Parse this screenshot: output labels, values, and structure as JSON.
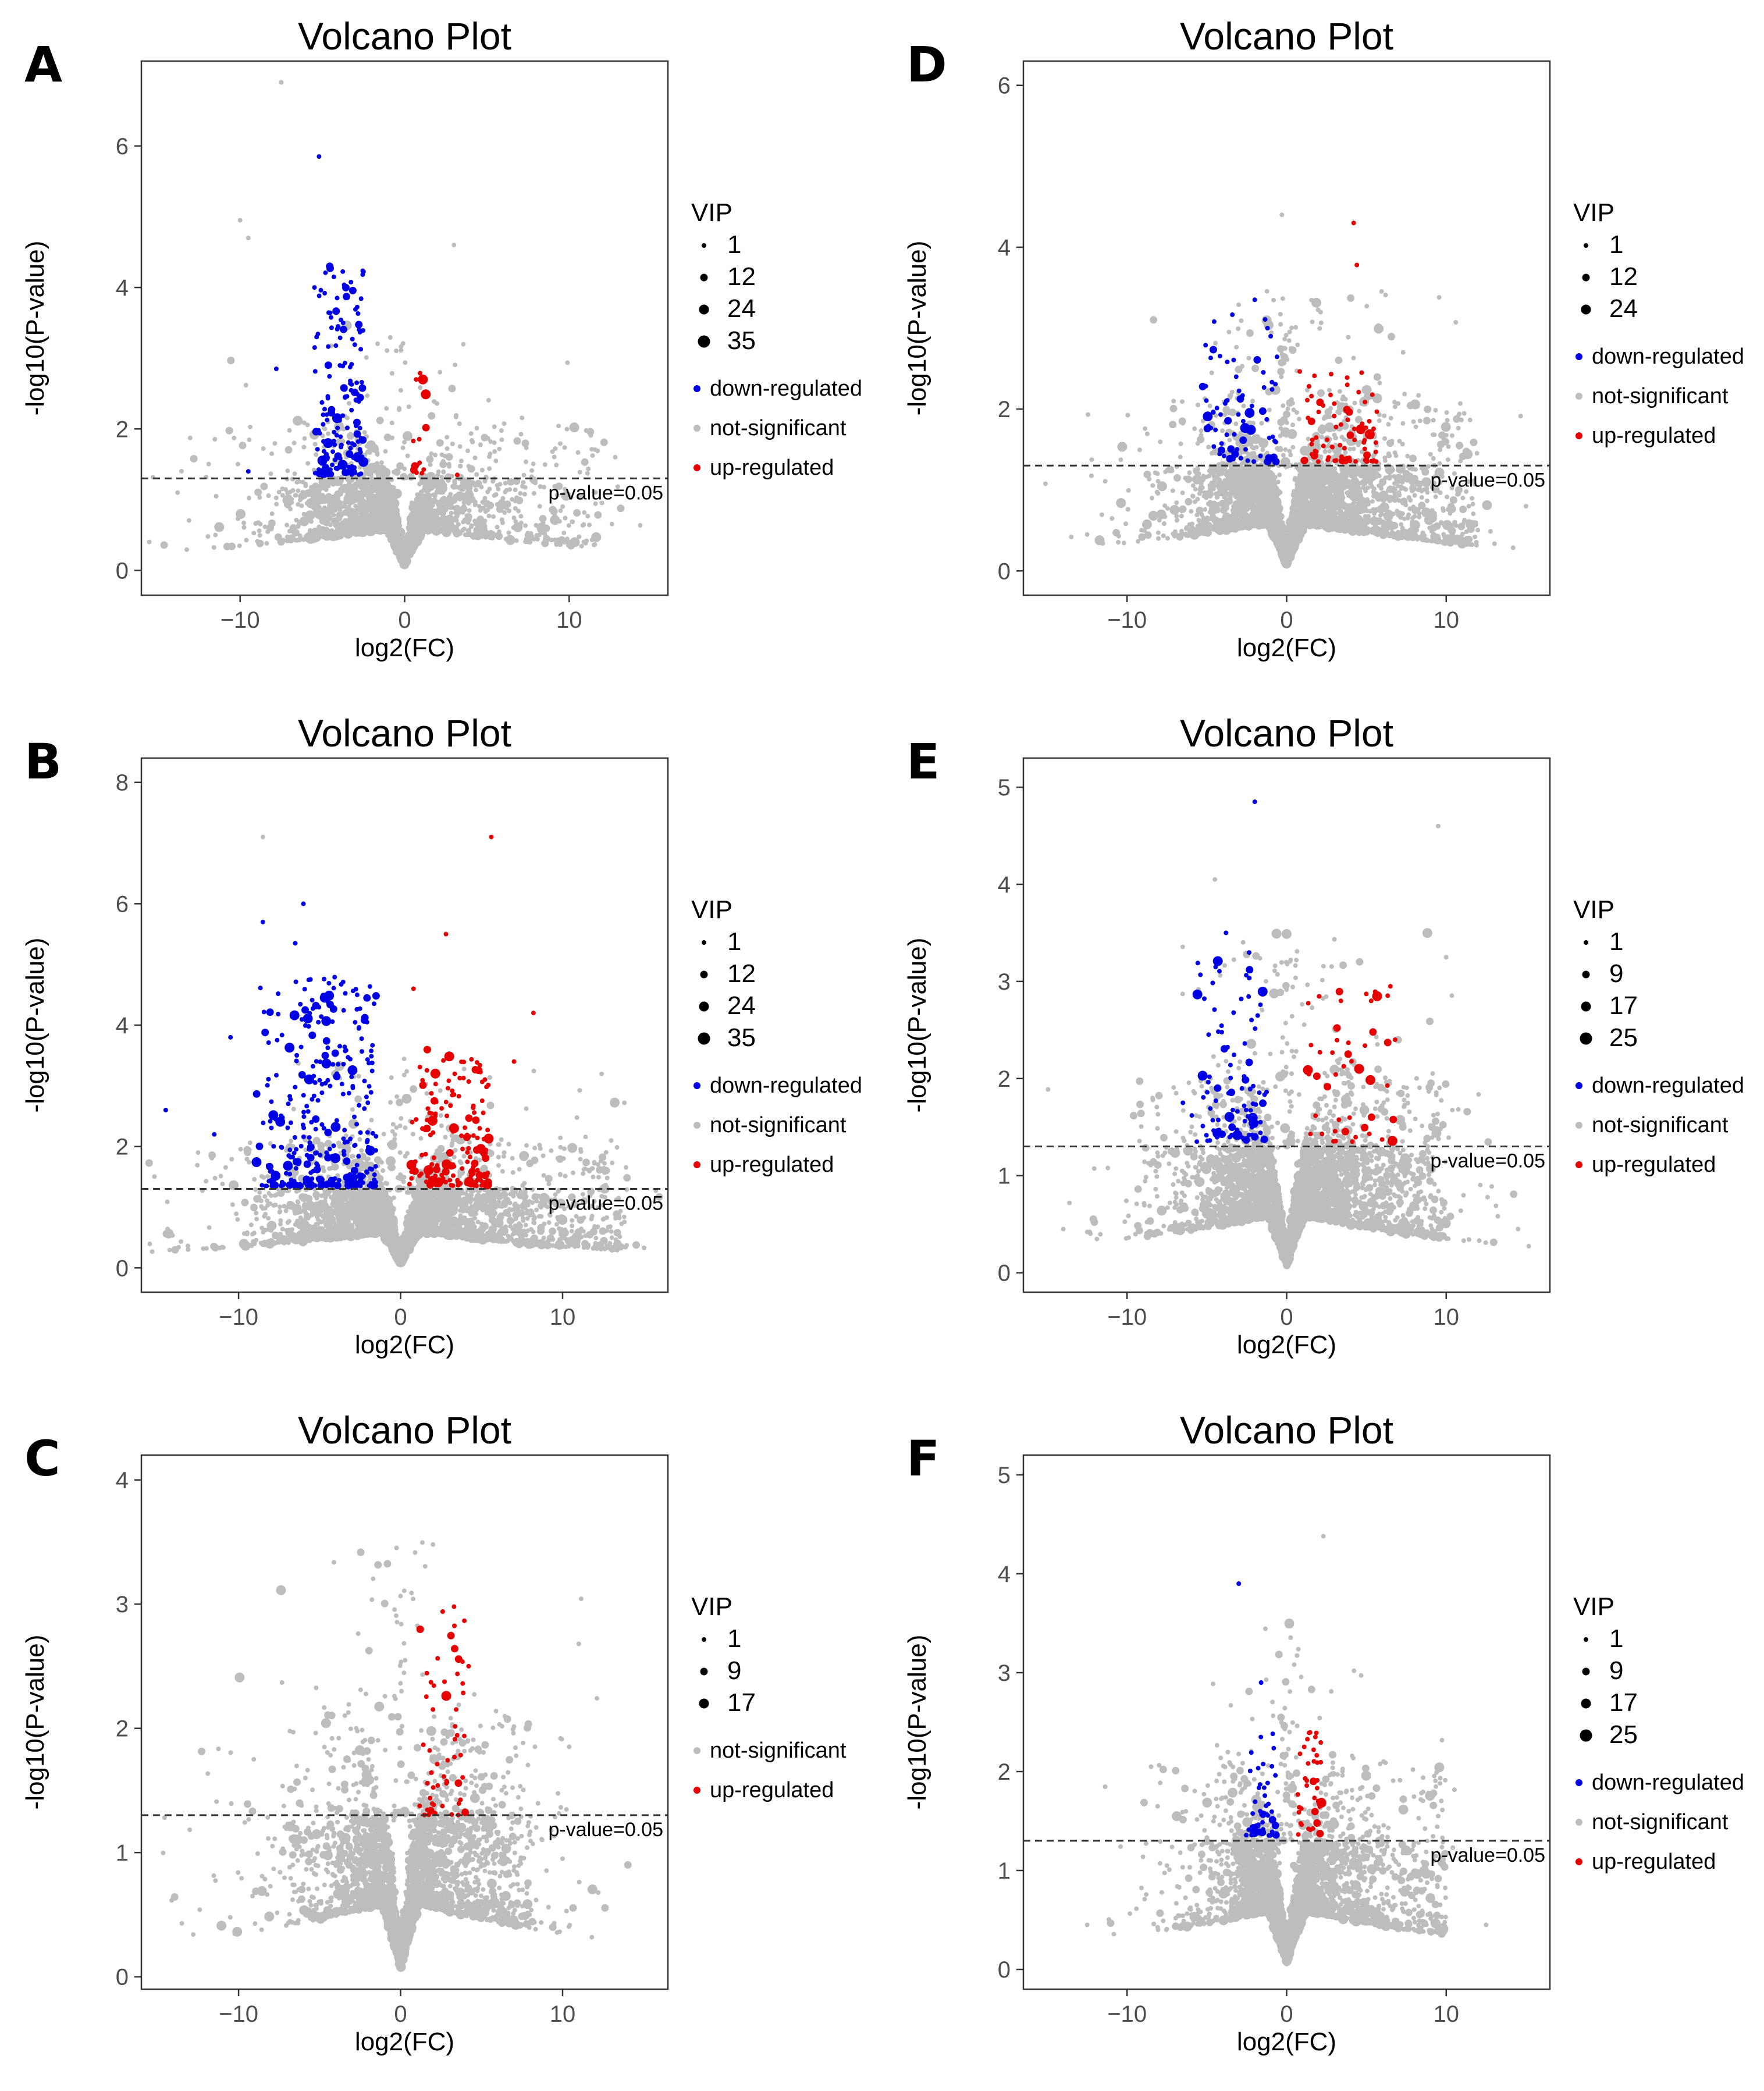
{
  "colors": {
    "down": "#0000e5",
    "not": "#bdbdbd",
    "up": "#e60000",
    "frame": "#333333",
    "tick": "#4d4d4d"
  },
  "chart_data": [
    {
      "letter": "A",
      "type": "scatter",
      "title": "Volcano Plot",
      "xlabel": "log2(FC)",
      "ylabel": "-log10(P-value)",
      "xlim": [
        -16,
        16
      ],
      "ylim": [
        -0.35,
        7.2
      ],
      "xticks": [
        -10,
        0,
        10
      ],
      "yticks": [
        0,
        2,
        4,
        6
      ],
      "threshold": {
        "y": 1.30103,
        "label": "p-value=0.05"
      },
      "legend": {
        "size_title": "VIP",
        "sizes": [
          "1",
          "12",
          "24",
          "35"
        ],
        "groups": [
          {
            "key": "down",
            "label": "down-regulated"
          },
          {
            "key": "not",
            "label": "not-significant"
          },
          {
            "key": "up",
            "label": "up-regulated"
          }
        ]
      },
      "sim": {
        "seed": 11,
        "n_bg": 2600,
        "x_spread": 4.5,
        "left_weight": 1.6,
        "right_weight": 1.0,
        "right_tail": 12,
        "down_n": 170,
        "down_x": [
          -5.5,
          -2.5
        ],
        "down_y": [
          1.35,
          4.3
        ],
        "up_n": 14,
        "up_x": [
          0.5,
          1.3
        ],
        "up_y": [
          1.35,
          2.8
        ],
        "outliers_down": [
          [
            -5.2,
            5.85
          ],
          [
            -4.6,
            4.3
          ],
          [
            -4.3,
            4.15
          ],
          [
            -7.8,
            2.85
          ],
          [
            -9.5,
            1.4
          ]
        ],
        "outliers_up": [
          [
            0.7,
            2.7
          ],
          [
            0.9,
            2.7
          ],
          [
            3.2,
            1.35
          ]
        ],
        "outliers_not": [
          [
            -7.5,
            6.9
          ],
          [
            -10,
            4.95
          ],
          [
            -9.5,
            4.7
          ],
          [
            3,
            4.6
          ],
          [
            12.8,
            1.6
          ],
          [
            -13.8,
            1.1
          ],
          [
            -11.5,
            0.5
          ]
        ]
      }
    },
    {
      "letter": "B",
      "type": "scatter",
      "title": "Volcano Plot",
      "xlabel": "log2(FC)",
      "ylabel": "-log10(P-value)",
      "xlim": [
        -16,
        16.5
      ],
      "ylim": [
        -0.4,
        8.4
      ],
      "xticks": [
        -10,
        0,
        10
      ],
      "yticks": [
        0,
        2,
        4,
        6,
        8
      ],
      "threshold": {
        "y": 1.30103,
        "label": "p-value=0.05"
      },
      "legend": {
        "size_title": "VIP",
        "sizes": [
          "1",
          "12",
          "24",
          "35"
        ],
        "groups": [
          {
            "key": "down",
            "label": "down-regulated"
          },
          {
            "key": "not",
            "label": "not-significant"
          },
          {
            "key": "up",
            "label": "up-regulated"
          }
        ]
      },
      "sim": {
        "seed": 23,
        "n_bg": 3600,
        "x_spread": 5.0,
        "left_weight": 1.3,
        "right_weight": 1.3,
        "right_tail": 14,
        "down_n": 320,
        "down_x": [
          -9,
          -1.5
        ],
        "down_y": [
          1.35,
          4.8
        ],
        "up_n": 170,
        "up_x": [
          0.5,
          5.5
        ],
        "up_y": [
          1.35,
          3.6
        ],
        "outliers_down": [
          [
            -14.5,
            2.6
          ],
          [
            -8.5,
            5.7
          ],
          [
            -6,
            6.0
          ],
          [
            -6.5,
            5.35
          ],
          [
            -10.5,
            3.8
          ],
          [
            -11.5,
            2.2
          ]
        ],
        "outliers_up": [
          [
            5.6,
            7.1
          ],
          [
            2.8,
            5.5
          ],
          [
            8.2,
            4.2
          ],
          [
            0.8,
            4.6
          ],
          [
            7,
            3.4
          ]
        ],
        "outliers_not": [
          [
            -8.5,
            7.1
          ],
          [
            -12.5,
            1.9
          ],
          [
            13,
            2.1
          ],
          [
            13,
            0.6
          ],
          [
            12.5,
            0.8
          ]
        ]
      }
    },
    {
      "letter": "C",
      "type": "scatter",
      "title": "Volcano Plot",
      "xlabel": "log2(FC)",
      "ylabel": "-log10(P-value)",
      "xlim": [
        -16,
        16.5
      ],
      "ylim": [
        -0.1,
        4.2
      ],
      "xticks": [
        -10,
        0,
        10
      ],
      "yticks": [
        0,
        1,
        2,
        3,
        4
      ],
      "threshold": {
        "y": 1.30103,
        "label": "p-value=0.05"
      },
      "legend": {
        "size_title": "VIP",
        "sizes": [
          "1",
          "9",
          "17"
        ],
        "groups": [
          {
            "key": "not",
            "label": "not-significant"
          },
          {
            "key": "up",
            "label": "up-regulated"
          }
        ]
      },
      "sim": {
        "seed": 37,
        "n_bg": 3200,
        "x_spread": 4.0,
        "left_weight": 1.0,
        "right_weight": 1.2,
        "right_tail": 8,
        "down_n": 0,
        "down_x": [
          0,
          0
        ],
        "down_y": [
          0,
          0
        ],
        "up_n": 55,
        "up_x": [
          1.0,
          4.0
        ],
        "up_y": [
          1.3,
          2.95
        ],
        "outliers_down": [],
        "outliers_up": [
          [
            3.3,
            2.98
          ],
          [
            2.6,
            2.94
          ],
          [
            4.2,
            2.5
          ],
          [
            3.7,
            2.55
          ]
        ],
        "outliers_not": [
          [
            2,
            3.48
          ],
          [
            11,
            2.68
          ],
          [
            -13.5,
            0.43
          ],
          [
            10,
            0.95
          ],
          [
            12,
            0.7
          ]
        ]
      }
    },
    {
      "letter": "D",
      "type": "scatter",
      "title": "Volcano Plot",
      "xlabel": "log2(FC)",
      "ylabel": "-log10(P-value)",
      "xlim": [
        -16.5,
        16.5
      ],
      "ylim": [
        -0.3,
        6.3
      ],
      "xticks": [
        -10,
        0,
        10
      ],
      "yticks": [
        0,
        2,
        4,
        6
      ],
      "threshold": {
        "y": 1.30103,
        "label": "p-value=0.05"
      },
      "legend": {
        "size_title": "VIP",
        "sizes": [
          "1",
          "12",
          "24"
        ],
        "groups": [
          {
            "key": "down",
            "label": "down-regulated"
          },
          {
            "key": "not",
            "label": "not-significant"
          },
          {
            "key": "up",
            "label": "up-regulated"
          }
        ]
      },
      "sim": {
        "seed": 51,
        "n_bg": 4200,
        "x_spread": 4.0,
        "left_weight": 1.0,
        "right_weight": 1.2,
        "right_tail": 12,
        "down_n": 75,
        "down_x": [
          -5.5,
          -0.5
        ],
        "down_y": [
          1.35,
          3.2
        ],
        "up_n": 80,
        "up_x": [
          0.7,
          5.8
        ],
        "up_y": [
          1.35,
          2.5
        ],
        "outliers_down": [
          [
            -1.2,
            3.0
          ],
          [
            -1.0,
            2.9
          ],
          [
            -2,
            3.35
          ]
        ],
        "outliers_up": [
          [
            4.2,
            4.3
          ],
          [
            4.4,
            3.78
          ],
          [
            3.8,
            2.3
          ],
          [
            4.7,
            2.45
          ]
        ],
        "outliers_not": [
          [
            -0.3,
            4.4
          ],
          [
            7.3,
            2.7
          ],
          [
            -12.5,
            0.45
          ],
          [
            -13.5,
            0.42
          ],
          [
            15,
            0.8
          ]
        ]
      }
    },
    {
      "letter": "E",
      "type": "scatter",
      "title": "Volcano Plot",
      "xlabel": "log2(FC)",
      "ylabel": "-log10(P-value)",
      "xlim": [
        -16.5,
        16.5
      ],
      "ylim": [
        -0.2,
        5.3
      ],
      "xticks": [
        -10,
        0,
        10
      ],
      "yticks": [
        0,
        1,
        2,
        3,
        4,
        5
      ],
      "threshold": {
        "y": 1.30103,
        "label": "p-value=0.05"
      },
      "legend": {
        "size_title": "VIP",
        "sizes": [
          "1",
          "9",
          "17",
          "25"
        ],
        "groups": [
          {
            "key": "down",
            "label": "down-regulated"
          },
          {
            "key": "not",
            "label": "not-significant"
          },
          {
            "key": "up",
            "label": "up-regulated"
          }
        ]
      },
      "sim": {
        "seed": 67,
        "n_bg": 3800,
        "x_spread": 4.2,
        "left_weight": 1.0,
        "right_weight": 1.1,
        "right_tail": 10,
        "down_n": 95,
        "down_x": [
          -6.0,
          -1.2
        ],
        "down_y": [
          1.35,
          3.3
        ],
        "up_n": 45,
        "up_x": [
          1.2,
          6.8
        ],
        "up_y": [
          1.35,
          2.9
        ],
        "outliers_down": [
          [
            -2.0,
            4.85
          ],
          [
            -3.8,
            3.5
          ],
          [
            -6.5,
            1.75
          ]
        ],
        "outliers_up": [
          [
            6.5,
            2.95
          ],
          [
            3.4,
            2.8
          ],
          [
            5.3,
            2.8
          ],
          [
            6.8,
            2.4
          ]
        ],
        "outliers_not": [
          [
            -4.5,
            4.05
          ],
          [
            9.5,
            4.6
          ],
          [
            10,
            3.25
          ],
          [
            -14,
            0.45
          ],
          [
            -12.5,
            0.42
          ],
          [
            14.5,
            0.45
          ]
        ]
      }
    },
    {
      "letter": "F",
      "type": "scatter",
      "title": "Volcano Plot",
      "xlabel": "log2(FC)",
      "ylabel": "-log10(P-value)",
      "xlim": [
        -16.5,
        16.5
      ],
      "ylim": [
        -0.2,
        5.2
      ],
      "xticks": [
        -10,
        0,
        10
      ],
      "yticks": [
        0,
        1,
        2,
        3,
        4,
        5
      ],
      "threshold": {
        "y": 1.30103,
        "label": "p-value=0.05"
      },
      "legend": {
        "size_title": "VIP",
        "sizes": [
          "1",
          "9",
          "17",
          "25"
        ],
        "groups": [
          {
            "key": "down",
            "label": "down-regulated"
          },
          {
            "key": "not",
            "label": "not-significant"
          },
          {
            "key": "up",
            "label": "up-regulated"
          }
        ]
      },
      "sim": {
        "seed": 83,
        "n_bg": 3400,
        "x_spread": 3.2,
        "left_weight": 1.0,
        "right_weight": 1.1,
        "right_tail": 10,
        "down_n": 45,
        "down_x": [
          -3.0,
          -0.6
        ],
        "down_y": [
          1.35,
          2.4
        ],
        "up_n": 35,
        "up_x": [
          0.6,
          2.2
        ],
        "up_y": [
          1.35,
          2.4
        ],
        "outliers_down": [
          [
            -3.0,
            3.9
          ],
          [
            -1.6,
            2.9
          ]
        ],
        "outliers_up": [
          [
            1.8,
            2.35
          ],
          [
            1.1,
            2.25
          ]
        ],
        "outliers_not": [
          [
            2.3,
            4.38
          ],
          [
            -8.5,
            2.05
          ],
          [
            -7.5,
            1.05
          ],
          [
            9.5,
            1.55
          ],
          [
            -12.5,
            0.45
          ],
          [
            12.5,
            0.45
          ]
        ]
      }
    }
  ]
}
